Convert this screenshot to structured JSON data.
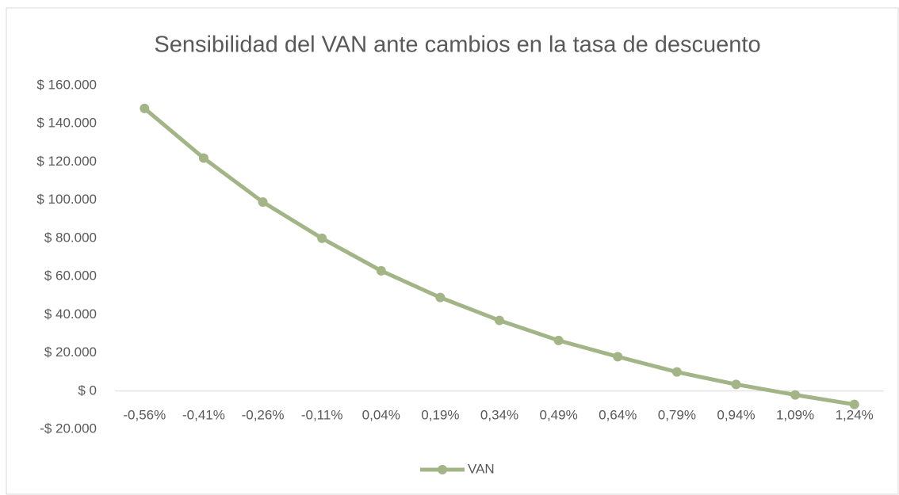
{
  "chart_data": {
    "type": "line",
    "title": "Sensibilidad del VAN ante cambios en la tasa de descuento",
    "categories": [
      "-0,56%",
      "-0,41%",
      "-0,26%",
      "-0,11%",
      "0,04%",
      "0,19%",
      "0,34%",
      "0,49%",
      "0,64%",
      "0,79%",
      "0,94%",
      "1,09%",
      "1,24%"
    ],
    "series": [
      {
        "name": "VAN",
        "color": "#a3b587",
        "values": [
          148000,
          122000,
          99000,
          80000,
          63000,
          49000,
          37000,
          26500,
          18000,
          10000,
          3500,
          -2000,
          -7000
        ]
      }
    ],
    "ylim": [
      -20000,
      160000
    ],
    "yticks": [
      {
        "value": -20000,
        "label": "-$ 20.000"
      },
      {
        "value": 0,
        "label": "$ 0"
      },
      {
        "value": 20000,
        "label": "$ 20.000"
      },
      {
        "value": 40000,
        "label": "$ 40.000"
      },
      {
        "value": 60000,
        "label": "$ 60.000"
      },
      {
        "value": 80000,
        "label": "$ 80.000"
      },
      {
        "value": 100000,
        "label": "$ 100.000"
      },
      {
        "value": 120000,
        "label": "$ 120.000"
      },
      {
        "value": 140000,
        "label": "$ 140.000"
      },
      {
        "value": 160000,
        "label": "$ 160.000"
      }
    ],
    "grid": false,
    "legend": "bottom"
  }
}
